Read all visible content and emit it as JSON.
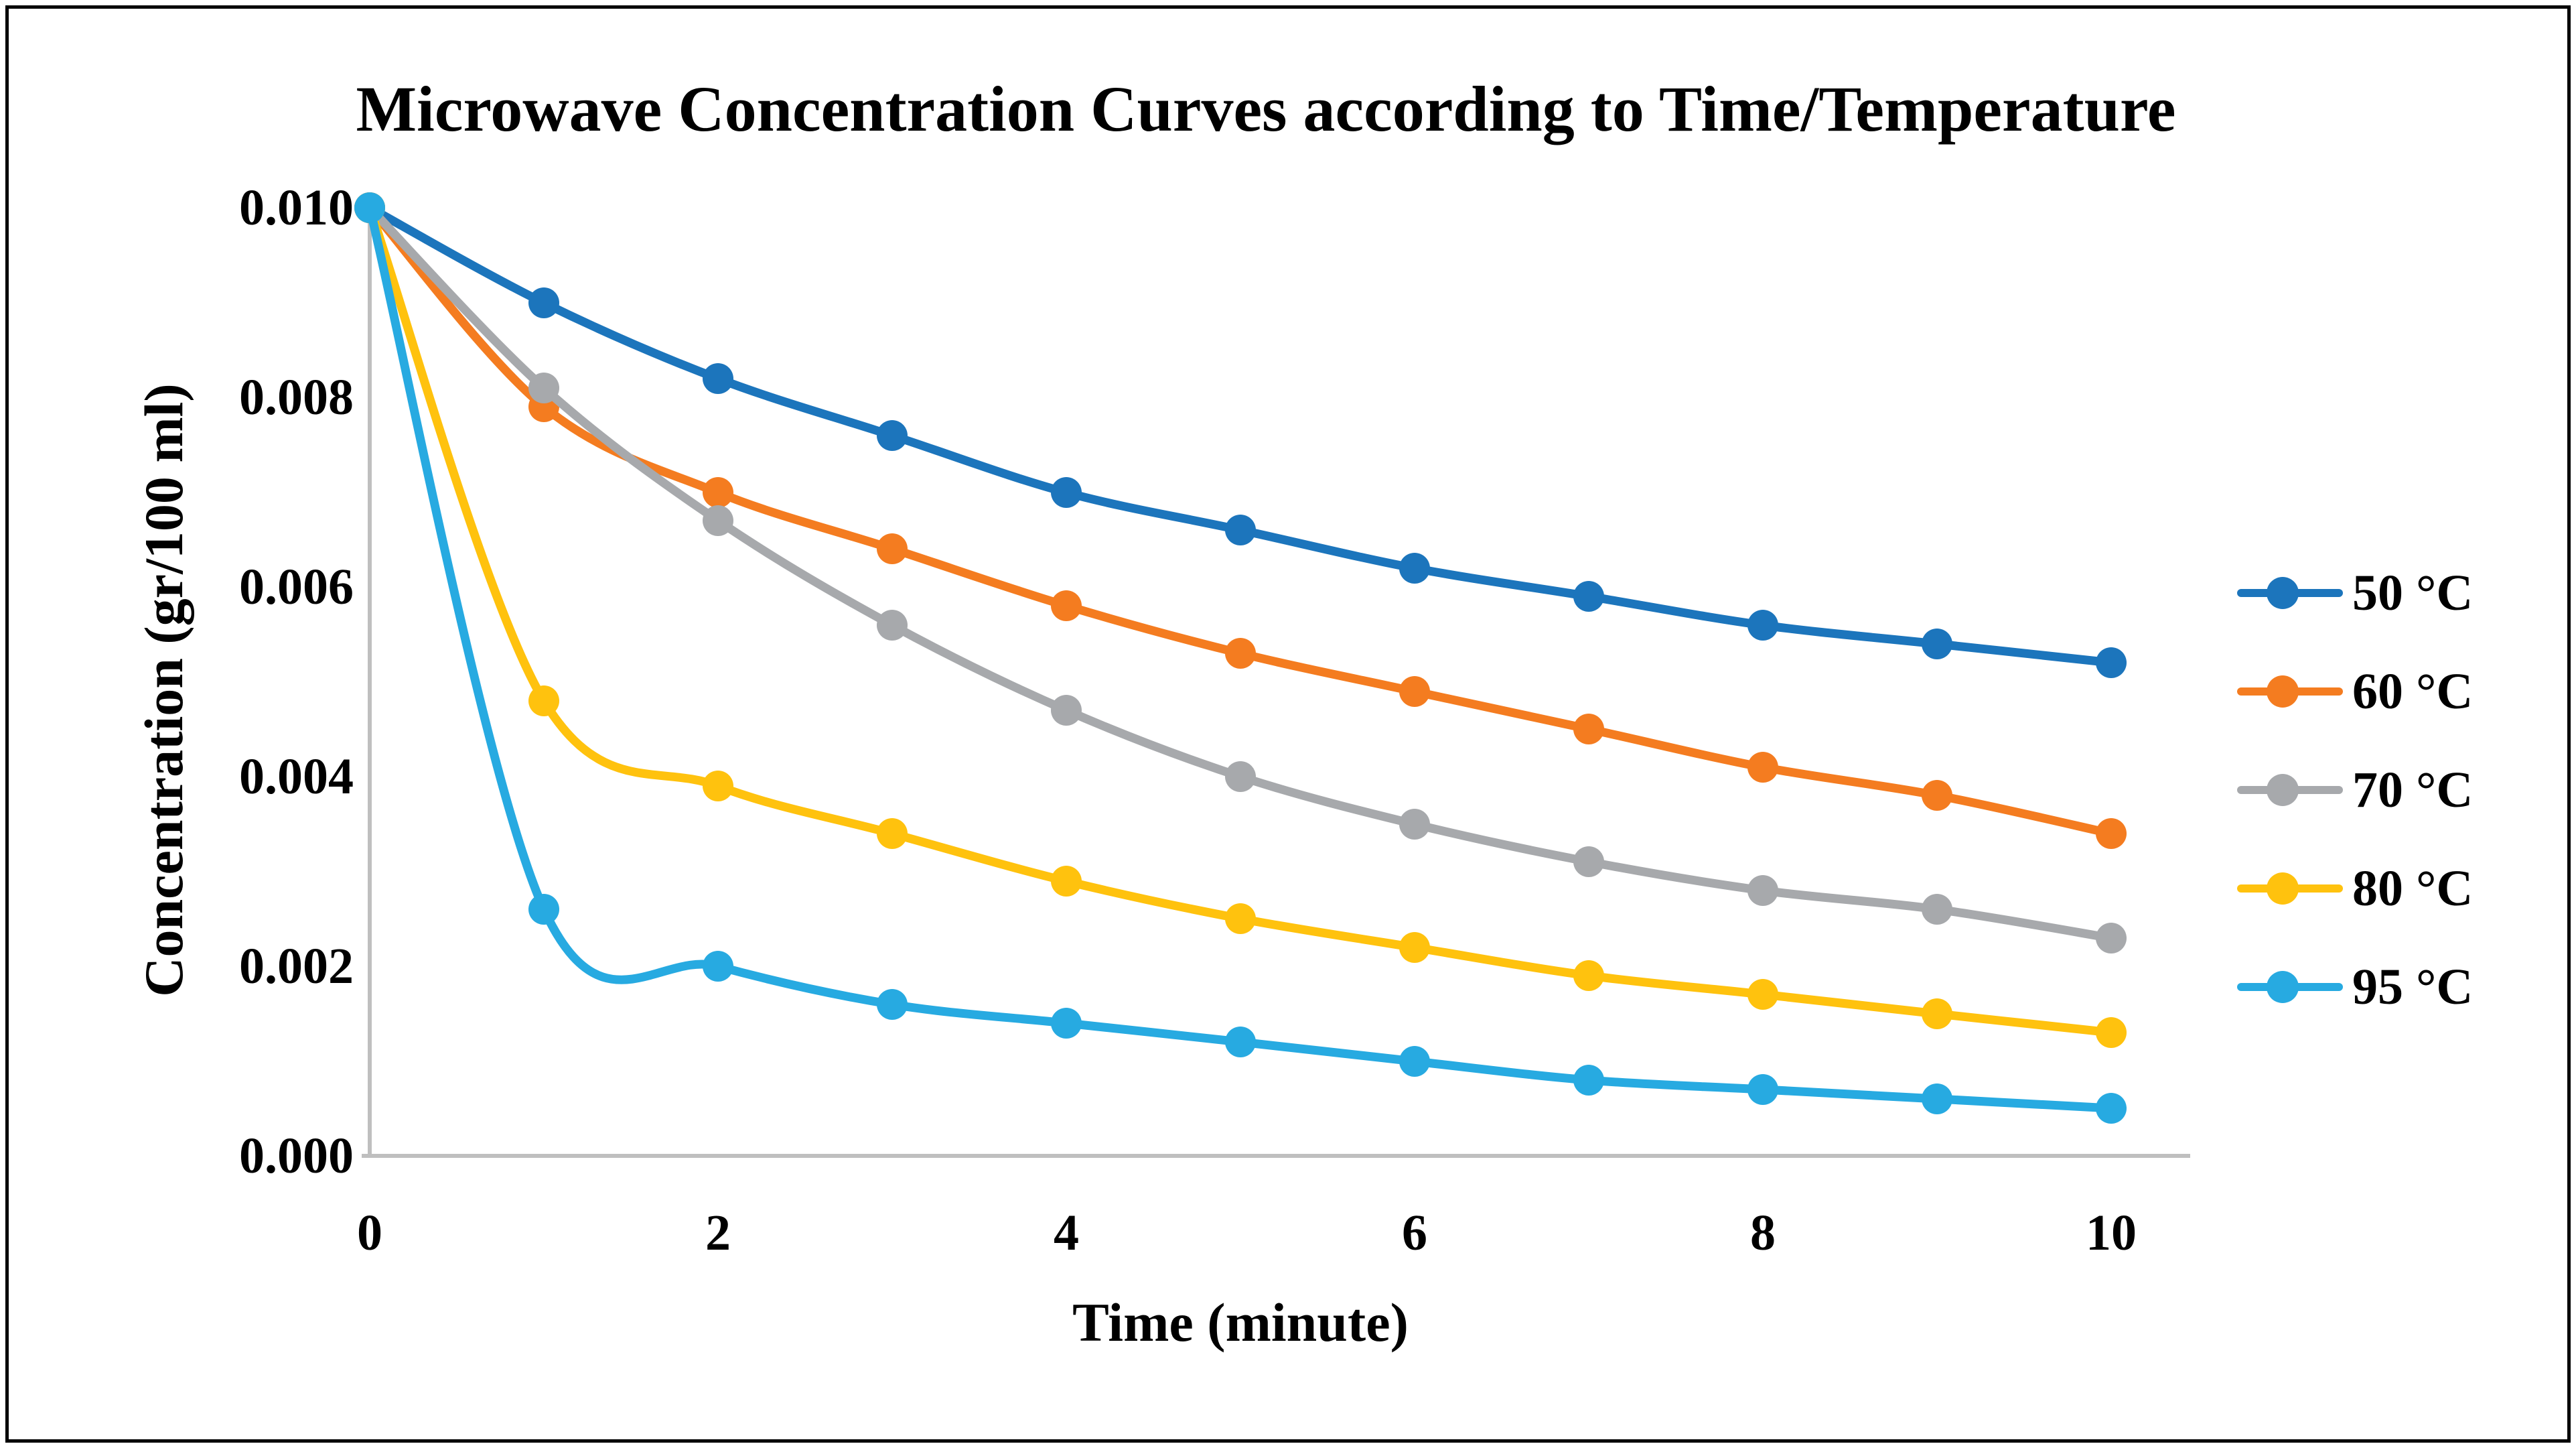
{
  "chart_data": {
    "type": "line",
    "title": "Microwave Concentration Curves according to Time/Temperature",
    "xlabel": "Time (minute)",
    "ylabel": "Concentration (gr/100 ml)",
    "x": [
      0,
      1,
      2,
      3,
      4,
      5,
      6,
      7,
      8,
      9,
      10
    ],
    "xlim": [
      0,
      10
    ],
    "ylim": [
      0,
      0.01
    ],
    "x_tick_labels": [
      "0",
      "2",
      "4",
      "6",
      "8",
      "10"
    ],
    "y_tick_labels": [
      "0.000",
      "0.002",
      "0.004",
      "0.006",
      "0.008",
      "0.010"
    ],
    "grid": false,
    "legend_position": "right",
    "marker": "circle",
    "line_smooth": true,
    "axis_color": "#BFBFBF",
    "series": [
      {
        "name": "50 °C",
        "color": "#1C75BC",
        "values": [
          0.01,
          0.009,
          0.0082,
          0.0076,
          0.007,
          0.0066,
          0.0062,
          0.0059,
          0.0056,
          0.0054,
          0.0052
        ]
      },
      {
        "name": "60 °C",
        "color": "#F47C20",
        "values": [
          0.01,
          0.0079,
          0.007,
          0.0064,
          0.0058,
          0.0053,
          0.0049,
          0.0045,
          0.0041,
          0.0038,
          0.0034
        ]
      },
      {
        "name": "70 °C",
        "color": "#A7A9AC",
        "values": [
          0.01,
          0.0081,
          0.0067,
          0.0056,
          0.0047,
          0.004,
          0.0035,
          0.0031,
          0.0028,
          0.0026,
          0.0023
        ]
      },
      {
        "name": "80 °C",
        "color": "#FFC20E",
        "values": [
          0.01,
          0.0048,
          0.0039,
          0.0034,
          0.0029,
          0.0025,
          0.0022,
          0.0019,
          0.0017,
          0.0015,
          0.0013
        ]
      },
      {
        "name": "95 °C",
        "color": "#27AAE1",
        "values": [
          0.01,
          0.0026,
          0.002,
          0.0016,
          0.0014,
          0.0012,
          0.001,
          0.0008,
          0.0007,
          0.0006,
          0.0005
        ]
      }
    ]
  }
}
